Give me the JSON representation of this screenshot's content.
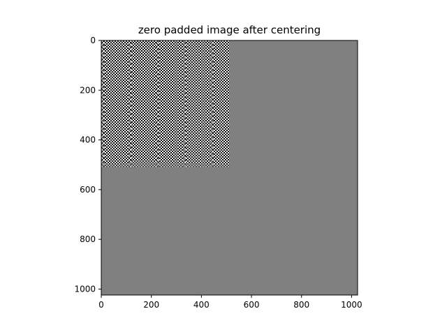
{
  "chart_data": {
    "type": "heatmap",
    "title": "zero padded image after centering",
    "xlabel": "",
    "ylabel": "",
    "xlim": [
      0,
      1024
    ],
    "ylim": [
      1024,
      0
    ],
    "x_ticks": [
      "0",
      "200",
      "400",
      "600",
      "800",
      "1000"
    ],
    "y_ticks": [
      "0",
      "200",
      "400",
      "600",
      "800",
      "1000"
    ],
    "x_tick_values": [
      0,
      200,
      400,
      600,
      800,
      1000
    ],
    "y_tick_values": [
      0,
      200,
      400,
      600,
      800,
      1000
    ],
    "image_size": [
      1024,
      1024
    ],
    "content_region": {
      "rows": [
        0,
        512
      ],
      "cols": [
        0,
        512
      ]
    },
    "pad_value_color": "#808080",
    "checker_colors": [
      "#000000",
      "#ffffff"
    ],
    "colormap": "gray",
    "grid": false
  }
}
